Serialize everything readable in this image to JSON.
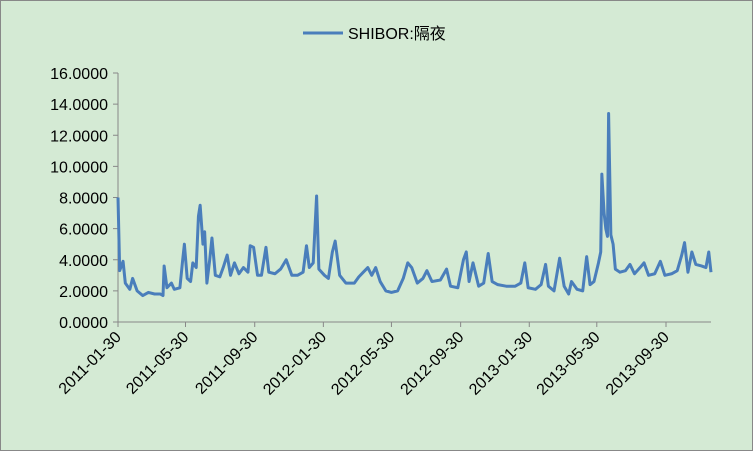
{
  "chart_data": {
    "type": "line",
    "series": [
      {
        "name": "SHIBOR:隔夜",
        "color": "#4a7ebb",
        "x": [
          "2011-01-30",
          "2011-02-02",
          "2011-02-08",
          "2011-02-12",
          "2011-02-20",
          "2011-02-25",
          "2011-03-05",
          "2011-03-15",
          "2011-03-25",
          "2011-04-05",
          "2011-04-15",
          "2011-04-20",
          "2011-04-22",
          "2011-04-27",
          "2011-05-05",
          "2011-05-10",
          "2011-05-20",
          "2011-05-25",
          "2011-05-28",
          "2011-06-02",
          "2011-06-08",
          "2011-06-12",
          "2011-06-18",
          "2011-06-22",
          "2011-06-25",
          "2011-06-30",
          "2011-07-03",
          "2011-07-07",
          "2011-07-12",
          "2011-07-16",
          "2011-07-22",
          "2011-07-30",
          "2011-08-05",
          "2011-08-12",
          "2011-08-18",
          "2011-08-25",
          "2011-09-02",
          "2011-09-10",
          "2011-09-18",
          "2011-09-22",
          "2011-09-28",
          "2011-10-05",
          "2011-10-12",
          "2011-10-20",
          "2011-10-25",
          "2011-11-05",
          "2011-11-15",
          "2011-11-25",
          "2011-12-05",
          "2011-12-15",
          "2011-12-25",
          "2011-12-31",
          "2012-01-05",
          "2012-01-12",
          "2012-01-18",
          "2012-01-22",
          "2012-02-01",
          "2012-02-08",
          "2012-02-15",
          "2012-02-20",
          "2012-02-28",
          "2012-03-10",
          "2012-03-25",
          "2012-04-02",
          "2012-04-10",
          "2012-04-18",
          "2012-04-25",
          "2012-05-02",
          "2012-05-10",
          "2012-05-20",
          "2012-05-30",
          "2012-06-10",
          "2012-06-20",
          "2012-06-28",
          "2012-07-05",
          "2012-07-15",
          "2012-07-25",
          "2012-08-01",
          "2012-08-10",
          "2012-08-25",
          "2012-09-05",
          "2012-09-12",
          "2012-09-25",
          "2012-10-05",
          "2012-10-10",
          "2012-10-15",
          "2012-10-22",
          "2012-11-01",
          "2012-11-10",
          "2012-11-18",
          "2012-11-25",
          "2012-12-05",
          "2012-12-20",
          "2013-01-05",
          "2013-01-15",
          "2013-01-22",
          "2013-01-28",
          "2013-02-10",
          "2013-02-20",
          "2013-02-28",
          "2013-03-05",
          "2013-03-15",
          "2013-03-25",
          "2013-04-02",
          "2013-04-10",
          "2013-04-15",
          "2013-04-25",
          "2013-05-05",
          "2013-05-12",
          "2013-05-18",
          "2013-05-25",
          "2013-06-02",
          "2013-06-06",
          "2013-06-08",
          "2013-06-12",
          "2013-06-15",
          "2013-06-18",
          "2013-06-20",
          "2013-06-24",
          "2013-06-28",
          "2013-07-02",
          "2013-07-10",
          "2013-07-20",
          "2013-07-28",
          "2013-08-05",
          "2013-08-15",
          "2013-08-22",
          "2013-08-30",
          "2013-09-10",
          "2013-09-20",
          "2013-09-28",
          "2013-10-10",
          "2013-10-20",
          "2013-10-28",
          "2013-11-02",
          "2013-11-08",
          "2013-11-15",
          "2013-11-22",
          "2013-12-02",
          "2013-12-10",
          "2013-12-15",
          "2013-12-19"
        ],
        "values": [
          8.0,
          3.3,
          3.9,
          2.5,
          2.1,
          2.8,
          2.0,
          1.7,
          1.9,
          1.8,
          1.8,
          1.7,
          3.6,
          2.2,
          2.5,
          2.1,
          2.2,
          4.0,
          5.0,
          2.8,
          2.6,
          3.8,
          3.5,
          6.8,
          7.5,
          5.0,
          5.8,
          2.5,
          4.0,
          5.4,
          3.0,
          2.9,
          3.5,
          4.3,
          3.0,
          3.8,
          3.1,
          3.5,
          3.2,
          4.9,
          4.8,
          3.0,
          3.0,
          4.8,
          3.2,
          3.1,
          3.4,
          4.0,
          3.0,
          3.0,
          3.2,
          4.9,
          3.5,
          3.8,
          8.1,
          3.4,
          3.0,
          2.8,
          4.5,
          5.2,
          3.0,
          2.5,
          2.5,
          2.9,
          3.2,
          3.5,
          3.0,
          3.5,
          2.6,
          2.0,
          1.9,
          2.0,
          2.8,
          3.8,
          3.5,
          2.5,
          2.8,
          3.3,
          2.6,
          2.7,
          3.4,
          2.3,
          2.2,
          4.0,
          4.5,
          2.6,
          3.8,
          2.3,
          2.5,
          4.4,
          2.6,
          2.4,
          2.3,
          2.3,
          2.5,
          3.8,
          2.2,
          2.1,
          2.4,
          3.7,
          2.3,
          2.0,
          4.1,
          2.3,
          1.8,
          2.6,
          2.1,
          2.0,
          4.2,
          2.4,
          2.6,
          3.8,
          4.5,
          9.5,
          7.0,
          6.0,
          5.5,
          13.4,
          5.6,
          5.0,
          3.4,
          3.2,
          3.3,
          3.7,
          3.1,
          3.5,
          3.8,
          3.0,
          3.1,
          3.9,
          3.0,
          3.1,
          3.3,
          4.3,
          5.1,
          3.2,
          4.5,
          3.7,
          3.6,
          3.5,
          4.5,
          3.2
        ]
      }
    ],
    "xlim": [
      "2011-01-30",
      "2013-12-19"
    ],
    "xticks": [
      "2011-01-30",
      "2011-05-30",
      "2011-09-30",
      "2012-01-30",
      "2012-05-30",
      "2012-09-30",
      "2013-01-30",
      "2013-05-30",
      "2013-09-30"
    ],
    "ylim": [
      0,
      16
    ],
    "yticks": [
      {
        "value": 0,
        "label": "0.0000"
      },
      {
        "value": 2,
        "label": "2.0000"
      },
      {
        "value": 4,
        "label": "4.0000"
      },
      {
        "value": 6,
        "label": "6.0000"
      },
      {
        "value": 8,
        "label": "8.0000"
      },
      {
        "value": 10,
        "label": "10.0000"
      },
      {
        "value": 12,
        "label": "12.0000"
      },
      {
        "value": 14,
        "label": "14.0000"
      },
      {
        "value": 16,
        "label": "16.0000"
      }
    ],
    "legend": "top"
  }
}
